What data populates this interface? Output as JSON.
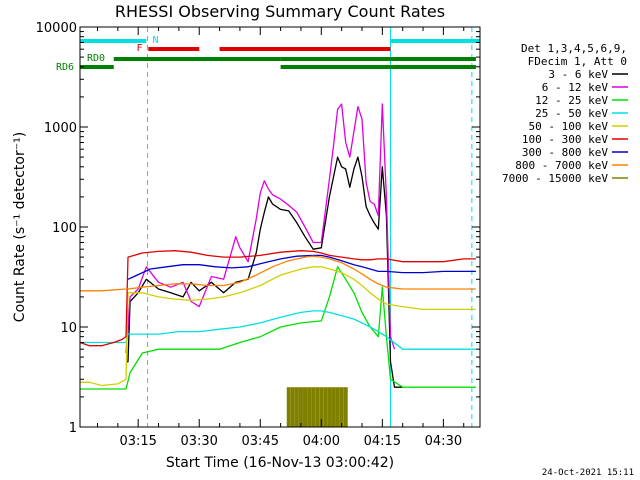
{
  "chart_data": {
    "type": "line",
    "title": "RHESSI Observing Summary Count Rates",
    "xlabel": "Start Time (16-Nov-13 03:00:42)",
    "ylabel": "Count Rate (s⁻¹ detector⁻¹)",
    "yscale": "log",
    "ylim": [
      1,
      10000
    ],
    "xlim_minutes_after_0300": [
      0.7,
      99
    ],
    "y_ticks": [
      "1",
      "10",
      "100",
      "1000",
      "10000"
    ],
    "x_ticks": [
      {
        "minute": 15,
        "label": "03:15"
      },
      {
        "minute": 30,
        "label": "03:30"
      },
      {
        "minute": 45,
        "label": "03:45"
      },
      {
        "minute": 60,
        "label": "04:00"
      },
      {
        "minute": 75,
        "label": "04:15"
      },
      {
        "minute": 90,
        "label": "04:30"
      }
    ],
    "legend_header": [
      "Det 1,3,4,5,6,9,",
      "FDecim 1, Att 0"
    ],
    "legend_position": "right",
    "series": [
      {
        "name": "3 - 6 keV",
        "color": "#000000",
        "points": [
          [
            12,
            4.5
          ],
          [
            12.5,
            4.5
          ],
          [
            13,
            18
          ],
          [
            15,
            22
          ],
          [
            17,
            30
          ],
          [
            20,
            24
          ],
          [
            23,
            22
          ],
          [
            26,
            20
          ],
          [
            28,
            28
          ],
          [
            30,
            23
          ],
          [
            33,
            28
          ],
          [
            36,
            22
          ],
          [
            39,
            28
          ],
          [
            42,
            30
          ],
          [
            44,
            55
          ],
          [
            45,
            95
          ],
          [
            46,
            140
          ],
          [
            47,
            200
          ],
          [
            48,
            170
          ],
          [
            50,
            150
          ],
          [
            52,
            145
          ],
          [
            54,
            110
          ],
          [
            56,
            80
          ],
          [
            58,
            60
          ],
          [
            60,
            62
          ],
          [
            62,
            200
          ],
          [
            64,
            500
          ],
          [
            65,
            400
          ],
          [
            66,
            380
          ],
          [
            67,
            250
          ],
          [
            68,
            380
          ],
          [
            69,
            500
          ],
          [
            70,
            320
          ],
          [
            71,
            160
          ],
          [
            72,
            130
          ],
          [
            73,
            110
          ],
          [
            74,
            95
          ],
          [
            75,
            400
          ],
          [
            76,
            130
          ],
          [
            77,
            4.5
          ],
          [
            78,
            2.5
          ],
          [
            80,
            2.5
          ]
        ]
      },
      {
        "name": "6 - 12 keV",
        "color": "#e000e0",
        "points": [
          [
            12,
            5.5
          ],
          [
            13,
            20
          ],
          [
            15,
            24
          ],
          [
            17,
            40
          ],
          [
            20,
            28
          ],
          [
            23,
            25
          ],
          [
            26,
            28
          ],
          [
            28,
            18
          ],
          [
            30,
            16
          ],
          [
            33,
            32
          ],
          [
            36,
            30
          ],
          [
            39,
            80
          ],
          [
            40,
            62
          ],
          [
            42,
            45
          ],
          [
            44,
            120
          ],
          [
            45,
            220
          ],
          [
            46,
            290
          ],
          [
            47,
            240
          ],
          [
            48,
            210
          ],
          [
            50,
            190
          ],
          [
            52,
            165
          ],
          [
            54,
            140
          ],
          [
            56,
            100
          ],
          [
            58,
            70
          ],
          [
            60,
            70
          ],
          [
            62,
            300
          ],
          [
            63,
            650
          ],
          [
            64,
            1500
          ],
          [
            65,
            1700
          ],
          [
            66,
            700
          ],
          [
            67,
            500
          ],
          [
            68,
            900
          ],
          [
            69,
            1600
          ],
          [
            70,
            1200
          ],
          [
            71,
            280
          ],
          [
            72,
            180
          ],
          [
            73,
            170
          ],
          [
            74,
            130
          ],
          [
            75,
            1700
          ],
          [
            76,
            200
          ],
          [
            77,
            8
          ],
          [
            78,
            6
          ]
        ]
      },
      {
        "name": "12 - 25 keV",
        "color": "#00e000",
        "points": [
          [
            0.7,
            2.4
          ],
          [
            12,
            2.4
          ],
          [
            13,
            3.5
          ],
          [
            16,
            5.5
          ],
          [
            20,
            6
          ],
          [
            25,
            6
          ],
          [
            30,
            6
          ],
          [
            35,
            6
          ],
          [
            40,
            7
          ],
          [
            45,
            8
          ],
          [
            50,
            10
          ],
          [
            55,
            11
          ],
          [
            60,
            11.5
          ],
          [
            62,
            20
          ],
          [
            64,
            40
          ],
          [
            66,
            30
          ],
          [
            68,
            22
          ],
          [
            70,
            14
          ],
          [
            72,
            10
          ],
          [
            74,
            8
          ],
          [
            75,
            25
          ],
          [
            76,
            8
          ],
          [
            77,
            3
          ],
          [
            80,
            2.5
          ],
          [
            90,
            2.5
          ],
          [
            98,
            2.5
          ]
        ]
      },
      {
        "name": "25 - 50 keV",
        "color": "#00e0e0",
        "points": [
          [
            0.7,
            7
          ],
          [
            12,
            7
          ],
          [
            12.5,
            8.5
          ],
          [
            20,
            8.5
          ],
          [
            25,
            9
          ],
          [
            30,
            9
          ],
          [
            35,
            9.5
          ],
          [
            40,
            10
          ],
          [
            45,
            11
          ],
          [
            50,
            12.5
          ],
          [
            55,
            14
          ],
          [
            58,
            14.5
          ],
          [
            60,
            14.5
          ],
          [
            62,
            14
          ],
          [
            65,
            13
          ],
          [
            68,
            12
          ],
          [
            70,
            11
          ],
          [
            72,
            10
          ],
          [
            74,
            9
          ],
          [
            76,
            8
          ],
          [
            80,
            6
          ],
          [
            85,
            6
          ],
          [
            90,
            6
          ],
          [
            98,
            6
          ]
        ]
      },
      {
        "name": "50 - 100 keV",
        "color": "#d0d000",
        "points": [
          [
            0.7,
            2.8
          ],
          [
            3,
            2.8
          ],
          [
            6,
            2.6
          ],
          [
            10,
            2.7
          ],
          [
            12,
            3
          ],
          [
            12.5,
            22
          ],
          [
            16,
            22
          ],
          [
            20,
            20
          ],
          [
            24,
            19
          ],
          [
            28,
            18.5
          ],
          [
            32,
            19
          ],
          [
            36,
            20
          ],
          [
            40,
            22
          ],
          [
            45,
            26
          ],
          [
            50,
            33
          ],
          [
            55,
            38
          ],
          [
            58,
            40
          ],
          [
            60,
            40
          ],
          [
            62,
            38
          ],
          [
            65,
            35
          ],
          [
            68,
            30
          ],
          [
            70,
            26
          ],
          [
            72,
            22
          ],
          [
            74,
            19
          ],
          [
            76,
            17
          ],
          [
            80,
            16
          ],
          [
            85,
            15
          ],
          [
            90,
            15
          ],
          [
            98,
            15
          ]
        ]
      },
      {
        "name": "100 - 300 keV",
        "color": "#e00000",
        "points": [
          [
            0.7,
            7
          ],
          [
            3,
            6.5
          ],
          [
            6,
            6.5
          ],
          [
            9,
            7
          ],
          [
            11,
            7.5
          ],
          [
            12,
            8
          ],
          [
            12.5,
            50
          ],
          [
            16,
            55
          ],
          [
            20,
            57
          ],
          [
            24,
            58
          ],
          [
            28,
            56
          ],
          [
            32,
            52
          ],
          [
            36,
            50
          ],
          [
            40,
            50
          ],
          [
            45,
            52
          ],
          [
            50,
            56
          ],
          [
            55,
            58
          ],
          [
            58,
            57
          ],
          [
            60,
            55
          ],
          [
            62,
            52
          ],
          [
            65,
            50
          ],
          [
            68,
            48
          ],
          [
            70,
            47
          ],
          [
            72,
            47
          ],
          [
            74,
            48
          ],
          [
            76,
            48
          ],
          [
            80,
            45
          ],
          [
            85,
            45
          ],
          [
            90,
            45
          ],
          [
            95,
            48
          ],
          [
            98,
            48
          ]
        ]
      },
      {
        "name": "300 - 800 keV",
        "color": "#0000d0",
        "points": [
          [
            12.5,
            30
          ],
          [
            14,
            32
          ],
          [
            18,
            38
          ],
          [
            22,
            40
          ],
          [
            26,
            42
          ],
          [
            30,
            42
          ],
          [
            34,
            40
          ],
          [
            38,
            39
          ],
          [
            42,
            40
          ],
          [
            46,
            44
          ],
          [
            50,
            48
          ],
          [
            54,
            51
          ],
          [
            58,
            52
          ],
          [
            60,
            52
          ],
          [
            62,
            50
          ],
          [
            65,
            46
          ],
          [
            68,
            42
          ],
          [
            70,
            40
          ],
          [
            72,
            38
          ],
          [
            74,
            36
          ],
          [
            76,
            36
          ],
          [
            80,
            35
          ],
          [
            85,
            35
          ],
          [
            90,
            36
          ],
          [
            98,
            36
          ]
        ]
      },
      {
        "name": "800 - 7000 keV",
        "color": "#ff8000",
        "points": [
          [
            0.7,
            23
          ],
          [
            6,
            23
          ],
          [
            12,
            24
          ],
          [
            12.5,
            24
          ],
          [
            16,
            25
          ],
          [
            20,
            26
          ],
          [
            24,
            27
          ],
          [
            28,
            27
          ],
          [
            32,
            26
          ],
          [
            36,
            26
          ],
          [
            40,
            28
          ],
          [
            44,
            33
          ],
          [
            48,
            40
          ],
          [
            52,
            46
          ],
          [
            56,
            50
          ],
          [
            58,
            51
          ],
          [
            60,
            50
          ],
          [
            62,
            48
          ],
          [
            65,
            44
          ],
          [
            68,
            38
          ],
          [
            70,
            34
          ],
          [
            72,
            30
          ],
          [
            74,
            27
          ],
          [
            76,
            25
          ],
          [
            80,
            24
          ],
          [
            85,
            24
          ],
          [
            90,
            24
          ],
          [
            98,
            24
          ]
        ]
      },
      {
        "name": "7000 - 15000 keV",
        "color": "#808000",
        "points": [
          [
            52,
            2.5
          ],
          [
            53,
            2.5
          ],
          [
            54,
            2.5
          ],
          [
            55,
            2.5
          ],
          [
            56,
            2.5
          ],
          [
            57,
            2.5
          ],
          [
            58,
            2.5
          ],
          [
            59,
            2.5
          ],
          [
            60,
            2.5
          ],
          [
            61,
            2.5
          ],
          [
            62,
            2.5
          ],
          [
            63,
            2.5
          ],
          [
            64,
            2.5
          ],
          [
            65,
            2.5
          ],
          [
            66,
            2.5
          ]
        ]
      }
    ],
    "state_bars": [
      {
        "label": "N",
        "color": "#00e0e0",
        "segments": [
          [
            0.7,
            17
          ],
          [
            77,
            99
          ]
        ]
      },
      {
        "label": "F",
        "color": "#e00000",
        "segments": [
          [
            17.5,
            30
          ],
          [
            35,
            77
          ]
        ]
      },
      {
        "label": "RD0",
        "color": "#008000",
        "segments": [
          [
            9,
            50
          ],
          [
            50,
            98
          ]
        ]
      },
      {
        "label": "RD6",
        "color": "#008000",
        "segments": [
          [
            0.7,
            9
          ],
          [
            50,
            70
          ],
          [
            70,
            98
          ]
        ]
      }
    ],
    "vertical_markers": [
      {
        "minute": 17.3,
        "color": "#00e0e0",
        "style": "dashed"
      },
      {
        "minute": 77,
        "color": "#00e0e0",
        "style": "solid"
      },
      {
        "minute": 97,
        "color": "#00e0e0",
        "style": "dashed"
      }
    ]
  },
  "footer_timestamp": "24-Oct-2021 15:11"
}
